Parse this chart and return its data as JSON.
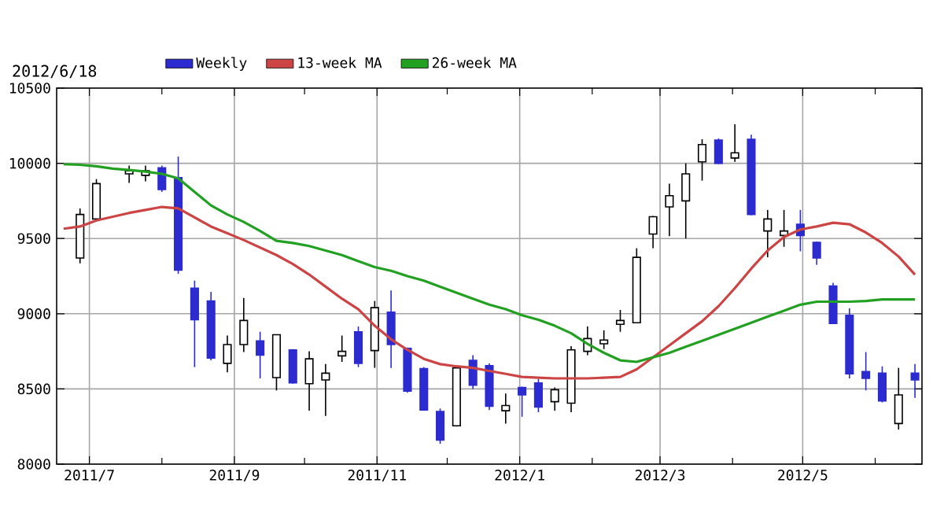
{
  "chart_data": {
    "type": "candlestick",
    "subtitle": "2012/6/18",
    "xlim": [
      "2011-06-17",
      "2012-06-21"
    ],
    "ylim": [
      8000,
      10500
    ],
    "xticks": [
      {
        "value": "2011-07-01",
        "label": "2011/7"
      },
      {
        "value": "2011-08-01",
        "label": null
      },
      {
        "value": "2011-09-01",
        "label": "2011/9"
      },
      {
        "value": "2011-10-01",
        "label": null
      },
      {
        "value": "2011-11-01",
        "label": "2011/11"
      },
      {
        "value": "2011-12-01",
        "label": null
      },
      {
        "value": "2012-01-01",
        "label": "2012/1"
      },
      {
        "value": "2012-02-01",
        "label": null
      },
      {
        "value": "2012-03-01",
        "label": "2012/3"
      },
      {
        "value": "2012-04-01",
        "label": null
      },
      {
        "value": "2012-05-01",
        "label": "2012/5"
      },
      {
        "value": "2012-06-01",
        "label": null
      }
    ],
    "yticks": [
      8000,
      8500,
      9000,
      9500,
      10000,
      10500
    ],
    "grid": true,
    "legend": "top left",
    "series": [
      {
        "name": "Weekly",
        "color": "#2b2bd0",
        "x": [
          "2011-06-27",
          "2011-07-04",
          "2011-07-18",
          "2011-07-25",
          "2011-08-01",
          "2011-08-08",
          "2011-08-15",
          "2011-08-22",
          "2011-08-29",
          "2011-09-05",
          "2011-09-12",
          "2011-09-19",
          "2011-09-26",
          "2011-10-03",
          "2011-10-10",
          "2011-10-17",
          "2011-10-24",
          "2011-10-31",
          "2011-11-07",
          "2011-11-14",
          "2011-11-21",
          "2011-11-28",
          "2011-12-05",
          "2011-12-12",
          "2011-12-19",
          "2011-12-26",
          "2012-01-02",
          "2012-01-09",
          "2012-01-16",
          "2012-01-23",
          "2012-01-30",
          "2012-02-06",
          "2012-02-13",
          "2012-02-20",
          "2012-02-27",
          "2012-03-05",
          "2012-03-12",
          "2012-03-19",
          "2012-03-26",
          "2012-04-02",
          "2012-04-09",
          "2012-04-16",
          "2012-04-23",
          "2012-04-30",
          "2012-05-07",
          "2012-05-14",
          "2012-05-21",
          "2012-05-28",
          "2012-06-04",
          "2012-06-11",
          "2012-06-18"
        ],
        "ohlc": [
          [
            9370,
            9700,
            9335,
            9660
          ],
          [
            9630,
            9895,
            9625,
            9865
          ],
          [
            9930,
            9985,
            9870,
            9950
          ],
          [
            9920,
            9985,
            9880,
            9950
          ],
          [
            9970,
            9985,
            9810,
            9825
          ],
          [
            9905,
            10045,
            9265,
            9290
          ],
          [
            9170,
            9220,
            8645,
            8960
          ],
          [
            9085,
            9145,
            8690,
            8705
          ],
          [
            8670,
            8855,
            8610,
            8795
          ],
          [
            8795,
            9105,
            8745,
            8955
          ],
          [
            8820,
            8880,
            8570,
            8725
          ],
          [
            8575,
            8860,
            8490,
            8860
          ],
          [
            8760,
            8765,
            8535,
            8540
          ],
          [
            8535,
            8750,
            8355,
            8700
          ],
          [
            8560,
            8665,
            8320,
            8605
          ],
          [
            8720,
            8855,
            8680,
            8750
          ],
          [
            8880,
            8915,
            8645,
            8670
          ],
          [
            8755,
            9085,
            8640,
            9040
          ],
          [
            9010,
            9155,
            8640,
            8795
          ],
          [
            8770,
            8775,
            8475,
            8485
          ],
          [
            8635,
            8645,
            8355,
            8360
          ],
          [
            8350,
            8370,
            8135,
            8160
          ],
          [
            8255,
            8645,
            8250,
            8640
          ],
          [
            8690,
            8725,
            8500,
            8525
          ],
          [
            8655,
            8670,
            8360,
            8385
          ],
          [
            8355,
            8470,
            8270,
            8390
          ],
          [
            8510,
            8515,
            8315,
            8460
          ],
          [
            8540,
            8565,
            8345,
            8380
          ],
          [
            8415,
            8510,
            8355,
            8495
          ],
          [
            8405,
            8785,
            8345,
            8760
          ],
          [
            8750,
            8915,
            8725,
            8835
          ],
          [
            8800,
            8890,
            8765,
            8825
          ],
          [
            8930,
            9025,
            8880,
            8955
          ],
          [
            8940,
            9435,
            8940,
            9375
          ],
          [
            9530,
            9650,
            9435,
            9645
          ],
          [
            9710,
            9865,
            9515,
            9785
          ],
          [
            9750,
            10000,
            9500,
            9930
          ],
          [
            10010,
            10160,
            9885,
            10125
          ],
          [
            10155,
            10165,
            9995,
            10000
          ],
          [
            10035,
            10260,
            10010,
            10070
          ],
          [
            10160,
            10190,
            9655,
            9660
          ],
          [
            9550,
            9690,
            9375,
            9630
          ],
          [
            9520,
            9690,
            9445,
            9550
          ],
          [
            9595,
            9690,
            9415,
            9520
          ],
          [
            9475,
            9480,
            9325,
            9370
          ],
          [
            9185,
            9205,
            8935,
            8935
          ],
          [
            8990,
            9035,
            8570,
            8600
          ],
          [
            8615,
            8745,
            8490,
            8570
          ],
          [
            8605,
            8650,
            8410,
            8420
          ],
          [
            8270,
            8640,
            8230,
            8460
          ],
          [
            8605,
            8665,
            8440,
            8560
          ]
        ],
        "colors": [
          "#ffffff",
          "#ffffff",
          "#ffffff",
          "#ffffff",
          "#2b2bd0",
          "#2b2bd0",
          "#2b2bd0",
          "#2b2bd0",
          "#ffffff",
          "#ffffff",
          "#2b2bd0",
          "#ffffff",
          "#2b2bd0",
          "#ffffff",
          "#ffffff",
          "#ffffff",
          "#2b2bd0",
          "#ffffff",
          "#2b2bd0",
          "#2b2bd0",
          "#2b2bd0",
          "#2b2bd0",
          "#ffffff",
          "#2b2bd0",
          "#2b2bd0",
          "#ffffff",
          "#2b2bd0",
          "#2b2bd0",
          "#ffffff",
          "#ffffff",
          "#ffffff",
          "#ffffff",
          "#ffffff",
          "#ffffff",
          "#ffffff",
          "#ffffff",
          "#ffffff",
          "#ffffff",
          "#2b2bd0",
          "#ffffff",
          "#2b2bd0",
          "#ffffff",
          "#ffffff",
          "#2b2bd0",
          "#2b2bd0",
          "#2b2bd0",
          "#2b2bd0",
          "#2b2bd0",
          "#2b2bd0",
          "#ffffff",
          "#2b2bd0"
        ]
      },
      {
        "type": "line",
        "name": "13-week MA",
        "color": "#cc4444",
        "x": [
          "2011-06-20",
          "2011-06-27",
          "2011-07-04",
          "2011-07-11",
          "2011-07-18",
          "2011-07-25",
          "2011-08-01",
          "2011-08-08",
          "2011-08-15",
          "2011-08-22",
          "2011-08-29",
          "2011-09-05",
          "2011-09-12",
          "2011-09-19",
          "2011-09-26",
          "2011-10-03",
          "2011-10-10",
          "2011-10-17",
          "2011-10-24",
          "2011-10-31",
          "2011-11-07",
          "2011-11-14",
          "2011-11-21",
          "2011-11-28",
          "2011-12-05",
          "2011-12-12",
          "2011-12-19",
          "2011-12-26",
          "2012-01-02",
          "2012-01-09",
          "2012-01-16",
          "2012-01-23",
          "2012-01-30",
          "2012-02-06",
          "2012-02-13",
          "2012-02-20",
          "2012-02-27",
          "2012-03-05",
          "2012-03-12",
          "2012-03-19",
          "2012-03-26",
          "2012-04-02",
          "2012-04-09",
          "2012-04-16",
          "2012-04-23",
          "2012-04-30",
          "2012-05-07",
          "2012-05-14",
          "2012-05-21",
          "2012-05-28",
          "2012-06-04",
          "2012-06-11",
          "2012-06-18"
        ],
        "values": [
          9565,
          9580,
          9620,
          9645,
          9670,
          9690,
          9710,
          9700,
          9640,
          9580,
          9535,
          9490,
          9440,
          9390,
          9330,
          9260,
          9180,
          9100,
          9030,
          8920,
          8830,
          8760,
          8700,
          8665,
          8650,
          8640,
          8620,
          8600,
          8580,
          8575,
          8570,
          8570,
          8570,
          8575,
          8580,
          8630,
          8710,
          8790,
          8870,
          8950,
          9050,
          9170,
          9300,
          9420,
          9510,
          9560,
          9580,
          9605,
          9595,
          9540,
          9470,
          9380,
          9260
        ]
      },
      {
        "type": "line",
        "name": "26-week MA",
        "color": "#22a022",
        "x": [
          "2011-06-20",
          "2011-06-27",
          "2011-07-04",
          "2011-07-11",
          "2011-07-18",
          "2011-07-25",
          "2011-08-01",
          "2011-08-08",
          "2011-08-15",
          "2011-08-22",
          "2011-08-29",
          "2011-09-05",
          "2011-09-12",
          "2011-09-19",
          "2011-09-26",
          "2011-10-03",
          "2011-10-10",
          "2011-10-17",
          "2011-10-24",
          "2011-10-31",
          "2011-11-07",
          "2011-11-14",
          "2011-11-21",
          "2011-11-28",
          "2011-12-05",
          "2011-12-12",
          "2011-12-19",
          "2011-12-26",
          "2012-01-02",
          "2012-01-09",
          "2012-01-16",
          "2012-01-23",
          "2012-01-30",
          "2012-02-06",
          "2012-02-13",
          "2012-02-20",
          "2012-02-27",
          "2012-03-05",
          "2012-03-12",
          "2012-03-19",
          "2012-03-26",
          "2012-04-02",
          "2012-04-09",
          "2012-04-16",
          "2012-04-23",
          "2012-04-30",
          "2012-05-07",
          "2012-05-14",
          "2012-05-21",
          "2012-05-28",
          "2012-06-04",
          "2012-06-11",
          "2012-06-18"
        ],
        "values": [
          9995,
          9990,
          9980,
          9965,
          9955,
          9945,
          9930,
          9900,
          9810,
          9720,
          9660,
          9610,
          9550,
          9485,
          9470,
          9450,
          9420,
          9390,
          9350,
          9310,
          9285,
          9250,
          9220,
          9180,
          9140,
          9100,
          9060,
          9030,
          8990,
          8960,
          8920,
          8870,
          8800,
          8740,
          8690,
          8680,
          8710,
          8740,
          8780,
          8820,
          8860,
          8900,
          8940,
          8980,
          9020,
          9060,
          9080,
          9080,
          9080,
          9085,
          9095,
          9095,
          9095
        ]
      }
    ]
  }
}
